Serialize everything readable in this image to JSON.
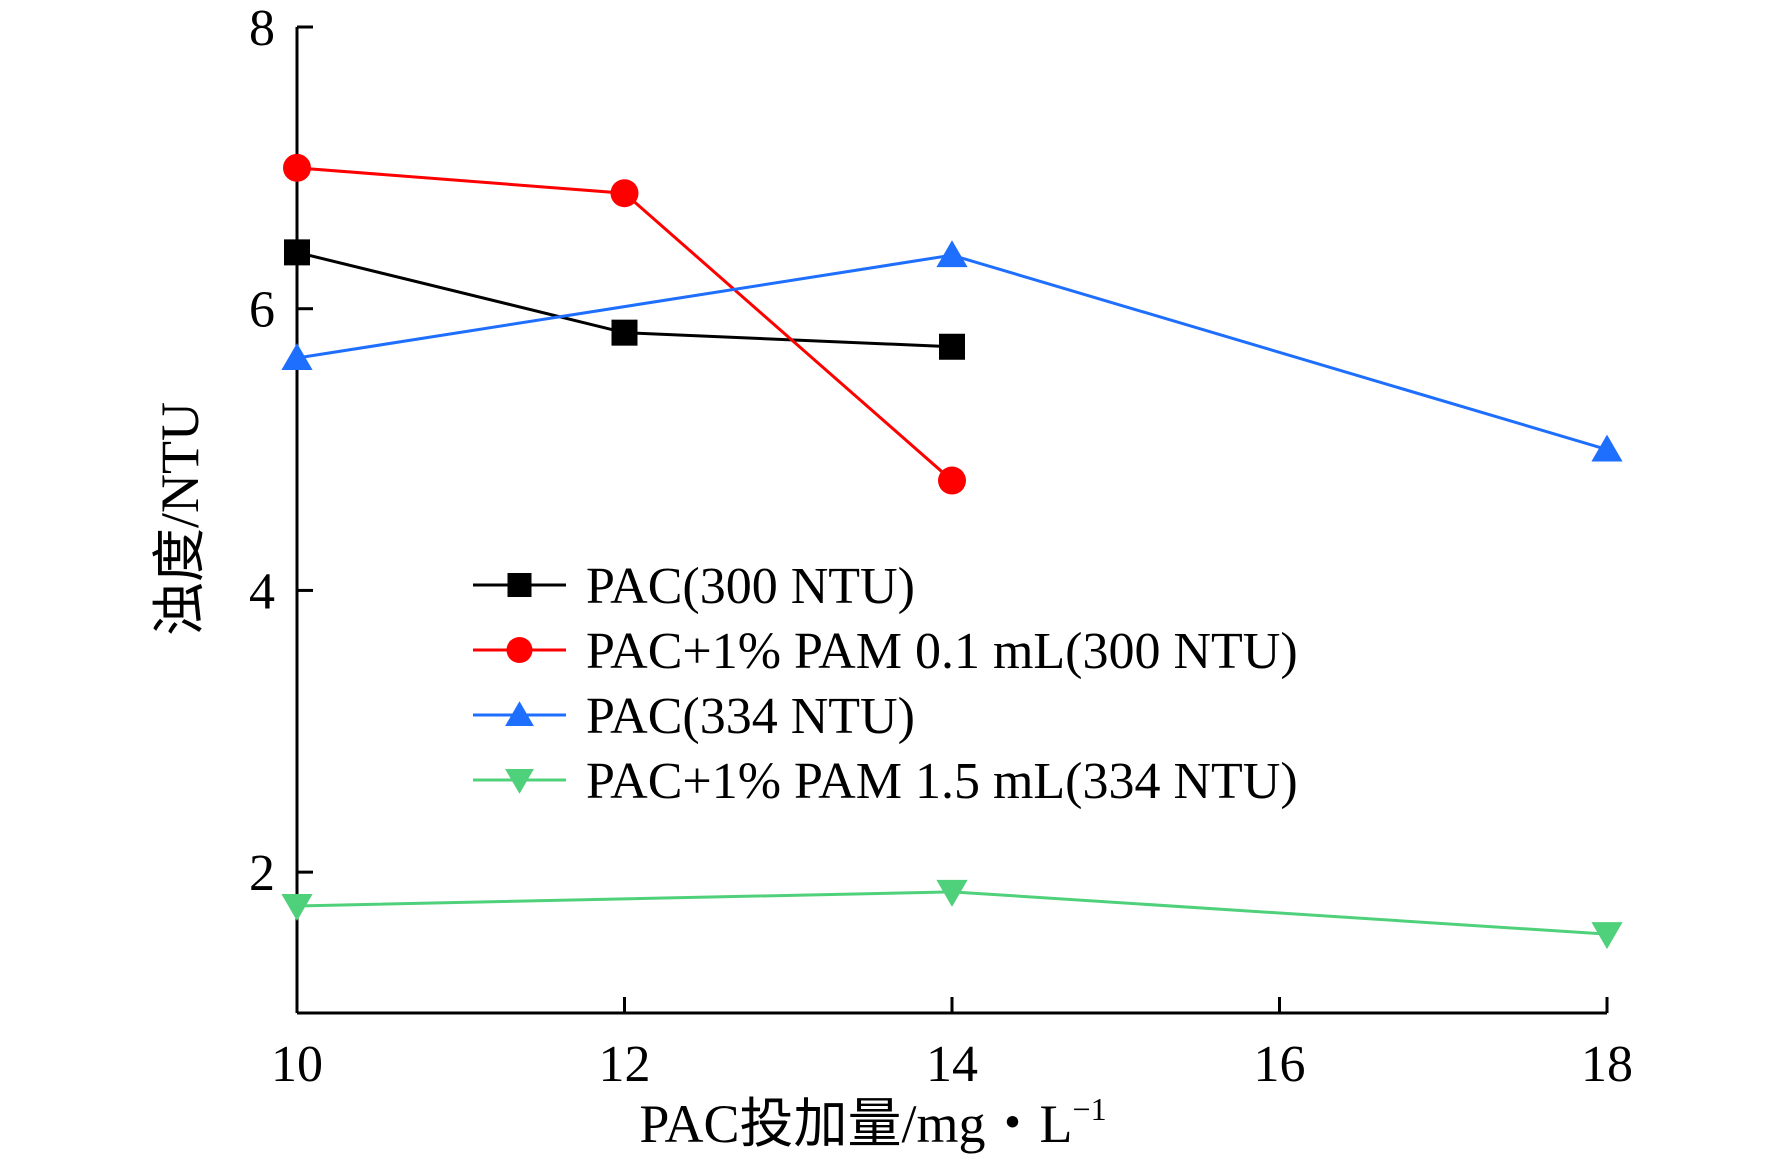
{
  "chart_data": {
    "type": "line",
    "title": "",
    "xlabel": "PAC投加量/mg・L",
    "xlabel_superscript": "−1",
    "ylabel": "浊度/NTU",
    "xlim": [
      10,
      18
    ],
    "ylim": [
      1,
      8
    ],
    "xticks": [
      10,
      12,
      14,
      16,
      18
    ],
    "yticks": [
      2,
      4,
      6,
      8
    ],
    "grid": false,
    "legend_position": "center",
    "series": [
      {
        "name": "PAC(300 NTU)",
        "color": "#000000",
        "marker": "square",
        "x": [
          10,
          12,
          14
        ],
        "y": [
          6.4,
          5.83,
          5.73
        ]
      },
      {
        "name": "PAC+1% PAM 0.1 mL(300 NTU)",
        "color": "#ff0000",
        "marker": "circle",
        "x": [
          10,
          12,
          14
        ],
        "y": [
          7.0,
          6.82,
          4.78
        ]
      },
      {
        "name": "PAC(334 NTU)",
        "color": "#1f6fff",
        "marker": "triangle-up",
        "x": [
          10,
          14,
          18
        ],
        "y": [
          5.65,
          6.38,
          5.0
        ]
      },
      {
        "name": "PAC+1% PAM 1.5 mL(334 NTU)",
        "color": "#4fd07a",
        "marker": "triangle-down",
        "x": [
          10,
          14,
          18
        ],
        "y": [
          1.76,
          1.86,
          1.56
        ]
      }
    ]
  }
}
